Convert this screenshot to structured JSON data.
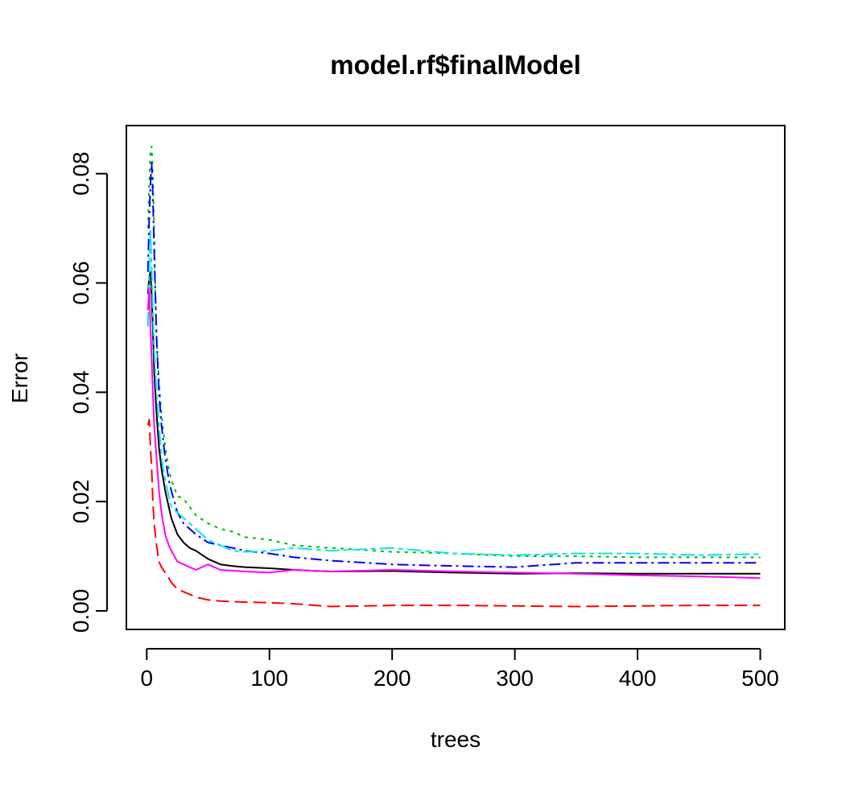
{
  "chart_data": {
    "type": "line",
    "title": "model.rf$finalModel",
    "xlabel": "trees",
    "ylabel": "Error",
    "xlim": [
      -16.6,
      520
    ],
    "ylim": [
      -0.0034,
      0.0888
    ],
    "xticks": [
      0,
      100,
      200,
      300,
      400,
      500
    ],
    "xtick_labels": [
      "0",
      "100",
      "200",
      "300",
      "400",
      "500"
    ],
    "yticks": [
      0.0,
      0.02,
      0.04,
      0.06,
      0.08
    ],
    "ytick_labels": [
      "0.00",
      "0.02",
      "0.04",
      "0.06",
      "0.08"
    ],
    "grid": false,
    "legend": "none",
    "series": [
      {
        "color": "#000000",
        "dash": "solid",
        "x": [
          1,
          2,
          3,
          4,
          5,
          6,
          8,
          10,
          12,
          15,
          18,
          20,
          25,
          30,
          35,
          40,
          50,
          60,
          70,
          80,
          100,
          120,
          150,
          200,
          250,
          300,
          350,
          400,
          450,
          500
        ],
        "y": [
          0.058,
          0.061,
          0.062,
          0.058,
          0.052,
          0.044,
          0.036,
          0.03,
          0.026,
          0.022,
          0.019,
          0.017,
          0.014,
          0.0125,
          0.0115,
          0.011,
          0.0095,
          0.0085,
          0.0082,
          0.008,
          0.0078,
          0.0075,
          0.0072,
          0.0073,
          0.007,
          0.0068,
          0.0069,
          0.0068,
          0.0068,
          0.0068
        ]
      },
      {
        "color": "#ff0000",
        "dash": "16,7",
        "x": [
          1,
          2,
          3,
          4,
          5,
          6,
          8,
          10,
          12,
          15,
          18,
          20,
          25,
          30,
          35,
          40,
          50,
          60,
          80,
          100,
          120,
          150,
          200,
          250,
          300,
          350,
          400,
          450,
          500
        ],
        "y": [
          0.034,
          0.035,
          0.03,
          0.026,
          0.02,
          0.016,
          0.012,
          0.009,
          0.008,
          0.007,
          0.006,
          0.0052,
          0.004,
          0.0035,
          0.003,
          0.0025,
          0.002,
          0.0018,
          0.0016,
          0.0015,
          0.0013,
          0.0008,
          0.001,
          0.001,
          0.0009,
          0.0008,
          0.0009,
          0.001,
          0.001
        ]
      },
      {
        "color": "#00bb00",
        "dash": "4,6",
        "x": [
          1,
          2,
          3,
          4,
          5,
          6,
          7,
          8,
          10,
          12,
          15,
          18,
          20,
          25,
          30,
          35,
          40,
          50,
          60,
          70,
          80,
          100,
          120,
          150,
          200,
          250,
          300,
          350,
          400,
          450,
          500
        ],
        "y": [
          0.07,
          0.078,
          0.084,
          0.085,
          0.08,
          0.07,
          0.058,
          0.05,
          0.042,
          0.036,
          0.03,
          0.026,
          0.024,
          0.021,
          0.0205,
          0.019,
          0.0175,
          0.016,
          0.015,
          0.0145,
          0.0135,
          0.013,
          0.012,
          0.0115,
          0.0108,
          0.0105,
          0.01,
          0.01,
          0.0098,
          0.0098,
          0.0098
        ]
      },
      {
        "color": "#0000ff",
        "dash": "14,5,3,5",
        "x": [
          1,
          2,
          3,
          4,
          5,
          6,
          8,
          10,
          12,
          15,
          18,
          20,
          25,
          30,
          40,
          50,
          60,
          70,
          80,
          100,
          120,
          150,
          200,
          250,
          300,
          350,
          400,
          450,
          500
        ],
        "y": [
          0.062,
          0.072,
          0.078,
          0.082,
          0.076,
          0.066,
          0.05,
          0.04,
          0.034,
          0.028,
          0.024,
          0.022,
          0.018,
          0.016,
          0.014,
          0.0125,
          0.012,
          0.0115,
          0.011,
          0.0105,
          0.0098,
          0.0092,
          0.0085,
          0.0082,
          0.008,
          0.0088,
          0.0088,
          0.0088,
          0.0088
        ]
      },
      {
        "color": "#00e5ee",
        "dash": "18,5,6,5",
        "x": [
          1,
          2,
          3,
          4,
          5,
          6,
          8,
          10,
          12,
          15,
          18,
          20,
          25,
          30,
          40,
          50,
          60,
          70,
          80,
          100,
          120,
          150,
          200,
          250,
          300,
          350,
          400,
          450,
          500
        ],
        "y": [
          0.052,
          0.062,
          0.07,
          0.063,
          0.055,
          0.048,
          0.04,
          0.034,
          0.028,
          0.024,
          0.021,
          0.019,
          0.018,
          0.017,
          0.015,
          0.013,
          0.012,
          0.011,
          0.0108,
          0.011,
          0.0115,
          0.011,
          0.0115,
          0.0105,
          0.0102,
          0.0105,
          0.0105,
          0.0102,
          0.0104
        ]
      },
      {
        "color": "#ff00ff",
        "dash": "solid",
        "x": [
          1,
          2,
          3,
          4,
          5,
          6,
          8,
          10,
          12,
          15,
          18,
          20,
          25,
          30,
          35,
          40,
          50,
          60,
          80,
          100,
          120,
          150,
          200,
          250,
          300,
          350,
          400,
          450,
          500
        ],
        "y": [
          0.055,
          0.059,
          0.052,
          0.046,
          0.04,
          0.034,
          0.028,
          0.022,
          0.018,
          0.014,
          0.012,
          0.011,
          0.009,
          0.0085,
          0.008,
          0.0075,
          0.0085,
          0.0075,
          0.0072,
          0.007,
          0.0075,
          0.0072,
          0.0075,
          0.0072,
          0.007,
          0.0068,
          0.0065,
          0.0063,
          0.006
        ]
      }
    ]
  }
}
